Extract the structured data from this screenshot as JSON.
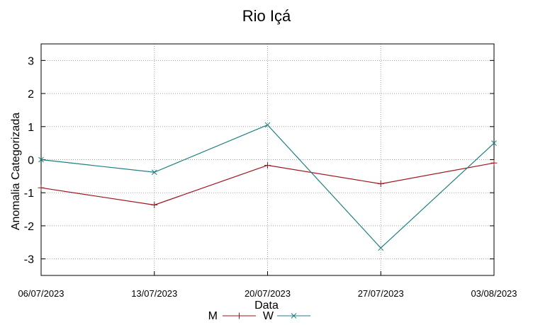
{
  "chart_data": {
    "type": "line",
    "title": "Rio Içá",
    "xlabel": "Data",
    "ylabel": "Anomalia Categorizada",
    "categories": [
      "06/07/2023",
      "13/07/2023",
      "20/07/2023",
      "27/07/2023",
      "03/08/2023"
    ],
    "ylim": [
      -3.5,
      3.5
    ],
    "yticks": [
      "3",
      "2",
      "1",
      "0",
      "-1",
      "-2",
      "-3"
    ],
    "ytick_values": [
      3,
      2,
      1,
      0,
      -1,
      -2,
      -3
    ],
    "grid": "horizontal dotted",
    "legend_position": "bottom-center",
    "series": [
      {
        "name": "M",
        "color": "#a0151e",
        "marker": "plus",
        "values": [
          -0.85,
          -1.37,
          -0.17,
          -0.73,
          -0.1
        ]
      },
      {
        "name": "W",
        "color": "#1f7f80",
        "marker": "cross",
        "values": [
          0.0,
          -0.38,
          1.05,
          -2.67,
          0.5
        ]
      }
    ]
  }
}
